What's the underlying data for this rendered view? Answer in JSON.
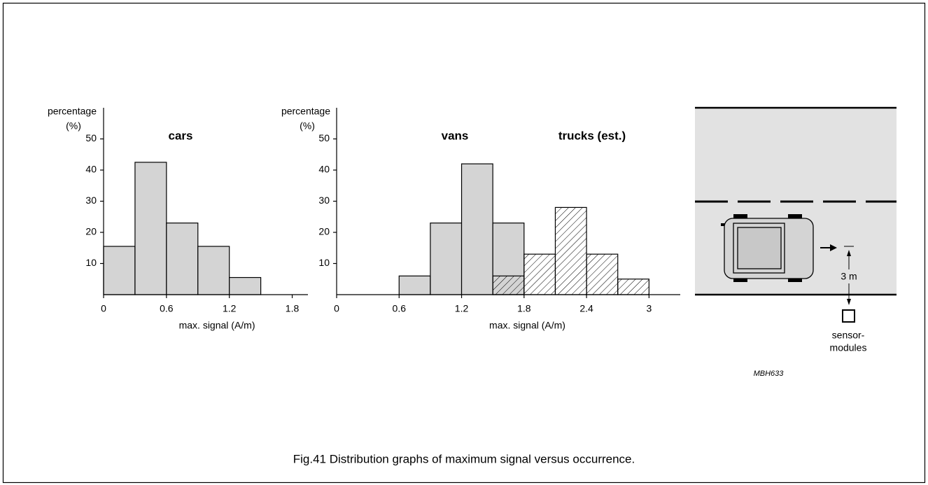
{
  "chart_data": [
    {
      "type": "histogram",
      "title": "cars",
      "ylabel": [
        "percentage",
        "(%)"
      ],
      "xlabel": "max. signal (A/m)",
      "xlim": [
        0,
        1.95
      ],
      "xticks": [
        0,
        0.6,
        1.2,
        1.8
      ],
      "ylim": [
        0,
        60
      ],
      "yticks": [
        10,
        20,
        30,
        40,
        50
      ],
      "series": [
        {
          "name": "cars",
          "color": "#d4d4d4",
          "bins": [
            0,
            0.3,
            0.6,
            0.9,
            1.2,
            1.5
          ],
          "values": [
            15.5,
            42.5,
            23,
            15.5,
            5.5
          ]
        }
      ]
    },
    {
      "type": "histogram",
      "ylabel": [
        "percentage",
        "(%)"
      ],
      "xlabel": "max. signal (A/m)",
      "xlim": [
        0,
        3.3
      ],
      "xticks": [
        0,
        0.6,
        1.2,
        1.8,
        2.4,
        3.0
      ],
      "ylim": [
        0,
        60
      ],
      "yticks": [
        10,
        20,
        30,
        40,
        50
      ],
      "series": [
        {
          "name": "vans",
          "color": "#d4d4d4",
          "bins": [
            0.6,
            0.9,
            1.2,
            1.5,
            1.8
          ],
          "values": [
            6,
            23,
            42,
            23
          ]
        },
        {
          "name": "trucks (est.)",
          "color": "#000000",
          "hatch": true,
          "bins": [
            1.5,
            1.8,
            2.1,
            2.4,
            2.7,
            3.0
          ],
          "values": [
            6,
            13,
            28,
            13,
            5
          ]
        }
      ]
    }
  ],
  "diagram": {
    "distance": "3 m",
    "sensor": [
      "sensor-",
      "modules"
    ],
    "code": "MBH633"
  },
  "caption": "Fig.41  Distribution graphs of maximum signal versus occurrence."
}
